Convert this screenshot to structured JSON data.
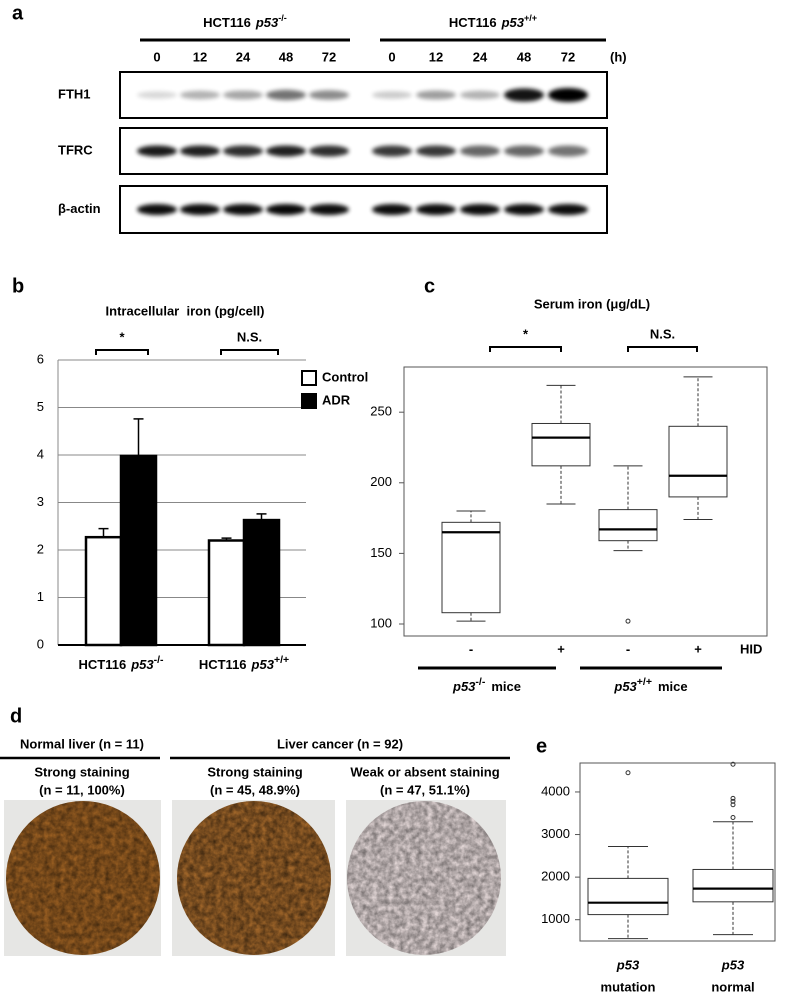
{
  "panel_labels": [
    "a",
    "b",
    "c",
    "d",
    "e"
  ],
  "panel_a": {
    "groups": [
      {
        "cell": "HCT116",
        "gene": "p53",
        "genotype": "-/-",
        "times": [
          0,
          12,
          24,
          48,
          72
        ]
      },
      {
        "cell": "HCT116",
        "gene": "p53",
        "genotype": "+/+",
        "times": [
          0,
          12,
          24,
          48,
          72
        ]
      }
    ],
    "unit": "(h)",
    "rows": [
      "FTH1",
      "TFRC",
      "β-actin"
    ]
  },
  "chart_data": [
    {
      "type": "bar",
      "title": "Intracellular  iron (pg/cell)",
      "categories": [
        {
          "cell": "HCT116",
          "gene": "p53",
          "genotype": "-/-"
        },
        {
          "cell": "HCT116",
          "gene": "p53",
          "genotype": "+/+"
        }
      ],
      "series": [
        {
          "name": "Control",
          "color": "#ffffff",
          "values": [
            2.27,
            2.2
          ],
          "errors": [
            0.18,
            0.05
          ]
        },
        {
          "name": "ADR",
          "color": "#000000",
          "values": [
            3.98,
            2.63
          ],
          "errors": [
            0.78,
            0.13
          ]
        }
      ],
      "ylim": [
        0,
        6
      ],
      "yticks": [
        0,
        1,
        2,
        3,
        4,
        5,
        6
      ],
      "grid": true,
      "legend": "upper right",
      "annotations": [
        "*",
        "N.S."
      ]
    },
    {
      "type": "box",
      "title": "Serum iron (μg/dL)",
      "categories": [
        "-",
        "+",
        "-",
        "+"
      ],
      "x_label": "HID",
      "groups": [
        {
          "gene": "p53",
          "genotype": "-/-",
          "suffix": "mice"
        },
        {
          "gene": "p53",
          "genotype": "+/+",
          "suffix": "mice"
        }
      ],
      "boxes": [
        {
          "low": 102,
          "q1": 108,
          "median": 165,
          "q3": 172,
          "high": 180
        },
        {
          "low": 185,
          "q1": 212,
          "median": 232,
          "q3": 242,
          "high": 269
        },
        {
          "low": 152,
          "q1": 159,
          "median": 167,
          "q3": 181,
          "high": 212,
          "outliers": [
            102
          ]
        },
        {
          "low": 174,
          "q1": 190,
          "median": 205,
          "q3": 240,
          "high": 275
        }
      ],
      "ylim": [
        91.5,
        282
      ],
      "yticks": [
        100,
        150,
        200,
        250
      ],
      "annotations": [
        "*",
        "N.S."
      ]
    },
    {
      "type": "box",
      "categories": [
        {
          "gene": "p53",
          "status": "mutation"
        },
        {
          "gene": "p53",
          "status": "normal"
        }
      ],
      "boxes": [
        {
          "low": 555,
          "q1": 1120,
          "median": 1400,
          "q3": 1970,
          "high": 2720,
          "outliers": [
            4450
          ]
        },
        {
          "low": 650,
          "q1": 1420,
          "median": 1730,
          "q3": 2180,
          "high": 3300,
          "outliers": [
            3400,
            3700,
            3780,
            3850,
            4650
          ]
        }
      ],
      "ylim": [
        500,
        4680
      ],
      "yticks": [
        1000,
        2000,
        3000,
        4000
      ]
    }
  ],
  "panel_d": {
    "groups": [
      {
        "title": "Normal liver (n = 11)",
        "columns": [
          {
            "label": "Strong staining",
            "count": "(n = 11, 100%)"
          }
        ]
      },
      {
        "title": "Liver cancer (n = 92)",
        "columns": [
          {
            "label": "Strong staining",
            "count": "(n = 45, 48.9%)"
          },
          {
            "label": "Weak or absent staining",
            "count": "(n = 47, 51.1%)"
          }
        ]
      }
    ]
  }
}
